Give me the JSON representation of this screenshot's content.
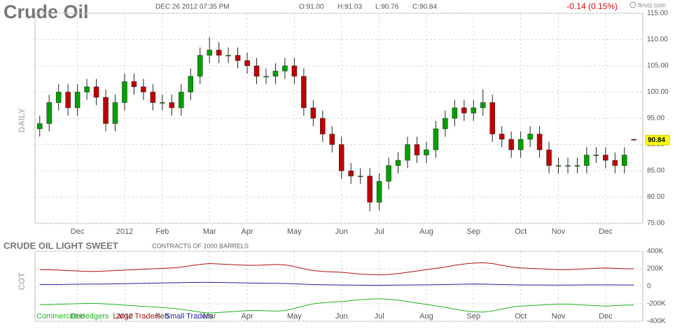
{
  "chart_data": [
    {
      "type": "candlestick",
      "title": "Crude Oil",
      "timestamp": "DEC 26 2012 07:35 PM",
      "quote": [
        "O:91.00",
        "H:91.03",
        "L:90.76",
        "C:90.84"
      ],
      "change": "-0.14 (0.15%)",
      "source": "finviz.com",
      "period_label": "DAILY",
      "last_price_label": "90.84",
      "up_color": "#00a000",
      "down_color": "#c00000",
      "categories": [
        null,
        null,
        null,
        null,
        "Dec",
        null,
        null,
        null,
        null,
        "2012",
        null,
        null,
        null,
        "Feb",
        null,
        null,
        null,
        null,
        "Mar",
        null,
        null,
        null,
        "Apr",
        null,
        null,
        null,
        null,
        "May",
        null,
        null,
        null,
        null,
        "Jun",
        null,
        null,
        null,
        "Jul",
        null,
        null,
        null,
        null,
        "Aug",
        null,
        null,
        null,
        null,
        "Sep",
        null,
        null,
        null,
        null,
        "Oct",
        null,
        null,
        null,
        "Nov",
        null,
        null,
        null,
        null,
        "Dec",
        null,
        null,
        null
      ],
      "open": [
        93,
        94,
        98,
        100,
        97,
        100,
        101,
        99,
        94,
        98,
        102,
        101,
        100,
        98,
        98,
        97,
        100,
        103,
        107,
        108,
        107,
        107,
        106,
        105,
        103,
        103,
        104,
        105,
        103,
        97,
        95,
        92,
        90,
        85,
        84,
        84,
        79,
        83,
        86,
        87,
        90,
        88,
        89,
        93,
        95,
        97,
        96,
        97,
        98,
        92,
        91,
        89,
        91,
        92,
        89,
        86,
        86,
        86,
        86,
        88,
        88,
        87,
        86,
        91.0
      ],
      "high": [
        95.5,
        99.5,
        101.5,
        101.5,
        101.5,
        102.5,
        102.5,
        100.5,
        99.5,
        103.5,
        103.5,
        102.5,
        101.5,
        99.5,
        99.5,
        101.5,
        104.5,
        108.5,
        110.5,
        109.5,
        108.5,
        108.5,
        107.5,
        106.5,
        104.5,
        105.5,
        106.5,
        106.5,
        104.5,
        98.5,
        96.5,
        93.5,
        91.5,
        86.5,
        85.5,
        85.5,
        84.5,
        87.5,
        88.5,
        91.5,
        91.5,
        90.5,
        94.5,
        96.5,
        98.5,
        98.5,
        98.5,
        100.5,
        99.5,
        93.5,
        92.5,
        92.5,
        93.5,
        93.5,
        90.5,
        87.5,
        87.5,
        87.5,
        89.5,
        89.5,
        89.5,
        88.5,
        89.5,
        91.03
      ],
      "low": [
        91.5,
        92.5,
        96.5,
        95.5,
        95.5,
        98.5,
        97.5,
        92.5,
        92.5,
        96.5,
        99.5,
        98.5,
        96.5,
        96.5,
        95.5,
        95.5,
        98.5,
        101.5,
        105.5,
        105.5,
        105.5,
        104.5,
        103.5,
        101.5,
        101.5,
        101.5,
        102.5,
        101.5,
        95.5,
        93.5,
        90.5,
        88.5,
        83.5,
        82.5,
        82.5,
        77.3,
        77.5,
        81.5,
        84.5,
        85.5,
        86.5,
        86.5,
        87.5,
        91.5,
        93.5,
        94.5,
        94.5,
        95.5,
        90.5,
        89.5,
        87.5,
        87.5,
        89.5,
        87.5,
        84.5,
        84.5,
        84.5,
        84.5,
        84.5,
        86.5,
        85.5,
        84.5,
        84.5,
        90.76
      ],
      "close": [
        94,
        98,
        100,
        97,
        100,
        101,
        99,
        94,
        98,
        102,
        101,
        100,
        98,
        98,
        97,
        100,
        103,
        107,
        108,
        107,
        107,
        106,
        105,
        103,
        103,
        104,
        105,
        103,
        97,
        95,
        92,
        90,
        85,
        84,
        84,
        79,
        83,
        86,
        87,
        90,
        88,
        89,
        93,
        95,
        97,
        96,
        97,
        98,
        92,
        91,
        89,
        91,
        92,
        89,
        86,
        86,
        86,
        86,
        88,
        88,
        87,
        86,
        88,
        90.84
      ],
      "ylim": [
        75,
        115
      ],
      "yticks": [
        {
          "value": 75,
          "label": "75.00"
        },
        {
          "value": 80,
          "label": "80.00"
        },
        {
          "value": 85,
          "label": "85.00"
        },
        {
          "value": 90,
          "label": "90.00"
        },
        {
          "value": 95,
          "label": "95.00"
        },
        {
          "value": 100,
          "label": "100.00"
        },
        {
          "value": 105,
          "label": "105.00"
        },
        {
          "value": 110,
          "label": "110.00"
        },
        {
          "value": 115,
          "label": "115.00"
        }
      ],
      "grid": true
    },
    {
      "type": "line",
      "title": "CRUDE OIL LIGHT SWEET",
      "subtitle": "CONTRACTS OF 1000 BARRELS",
      "period_label": "COT",
      "categories": [
        null,
        null,
        null,
        null,
        "Dec",
        null,
        null,
        null,
        null,
        "2012",
        null,
        null,
        null,
        "Feb",
        null,
        null,
        null,
        null,
        "Mar",
        null,
        null,
        null,
        "Apr",
        null,
        null,
        null,
        null,
        "May",
        null,
        null,
        null,
        null,
        "Jun",
        null,
        null,
        null,
        "Jul",
        null,
        null,
        null,
        null,
        "Aug",
        null,
        null,
        null,
        null,
        "Sep",
        null,
        null,
        null,
        null,
        "Oct",
        null,
        null,
        null,
        "Nov",
        null,
        null,
        null,
        null,
        "Dec",
        null,
        null,
        null
      ],
      "series": [
        {
          "name": "Commercial Hedgers",
          "color": "#22b322",
          "values": [
            -210000,
            -210000,
            -205000,
            -202000,
            -199000,
            -195000,
            -195000,
            -201000,
            -208000,
            -215000,
            -222000,
            -229000,
            -236000,
            -243000,
            -250000,
            -262000,
            -279000,
            -295000,
            -305000,
            -299000,
            -292000,
            -285000,
            -278000,
            -276000,
            -280000,
            -284000,
            -277000,
            -253000,
            -224000,
            -200000,
            -188000,
            -181000,
            -175000,
            -164000,
            -153000,
            -147000,
            -142000,
            -148000,
            -159000,
            -175000,
            -191000,
            -207000,
            -223000,
            -240000,
            -262000,
            -279000,
            -291000,
            -295000,
            -282000,
            -260000,
            -238000,
            -226000,
            -220000,
            -215000,
            -209000,
            -204000,
            -204000,
            -210000,
            -216000,
            -221000,
            -227000,
            -221000,
            -215000,
            -215000
          ]
        },
        {
          "name": "Large Traders",
          "color": "#b01010",
          "values": [
            190000,
            190000,
            185000,
            180000,
            175000,
            170000,
            170000,
            175000,
            180000,
            185000,
            190000,
            195000,
            200000,
            205000,
            210000,
            220000,
            235000,
            250000,
            260000,
            255000,
            250000,
            245000,
            240000,
            240000,
            245000,
            250000,
            245000,
            225000,
            200000,
            180000,
            170000,
            165000,
            160000,
            150000,
            140000,
            135000,
            130000,
            135000,
            145000,
            160000,
            175000,
            190000,
            205000,
            220000,
            240000,
            255000,
            265000,
            270000,
            260000,
            240000,
            220000,
            210000,
            205000,
            200000,
            195000,
            190000,
            190000,
            195000,
            200000,
            205000,
            210000,
            205000,
            200000,
            200000
          ]
        },
        {
          "name": "Small Traders",
          "color": "#2020a0",
          "values": [
            20000,
            20000,
            20000,
            22000,
            24000,
            25000,
            25000,
            26000,
            28000,
            30000,
            32000,
            34000,
            36000,
            38000,
            40000,
            42000,
            44000,
            45000,
            45000,
            44000,
            42000,
            40000,
            38000,
            36000,
            35000,
            34000,
            32000,
            28000,
            24000,
            20000,
            18000,
            16000,
            15000,
            14000,
            13000,
            12000,
            12000,
            13000,
            14000,
            15000,
            16000,
            17000,
            18000,
            20000,
            22000,
            24000,
            26000,
            25000,
            22000,
            20000,
            18000,
            16000,
            15000,
            15000,
            14000,
            14000,
            14000,
            15000,
            16000,
            16000,
            17000,
            16000,
            15000,
            15000
          ]
        }
      ],
      "ylim": [
        -400000,
        400000
      ],
      "yticks": [
        {
          "value": -400000,
          "label": "-400K"
        },
        {
          "value": -200000,
          "label": "-200K"
        },
        0,
        {
          "value": 200000,
          "label": "200K"
        },
        {
          "value": 400000,
          "label": "400K"
        }
      ],
      "grid": true
    }
  ]
}
